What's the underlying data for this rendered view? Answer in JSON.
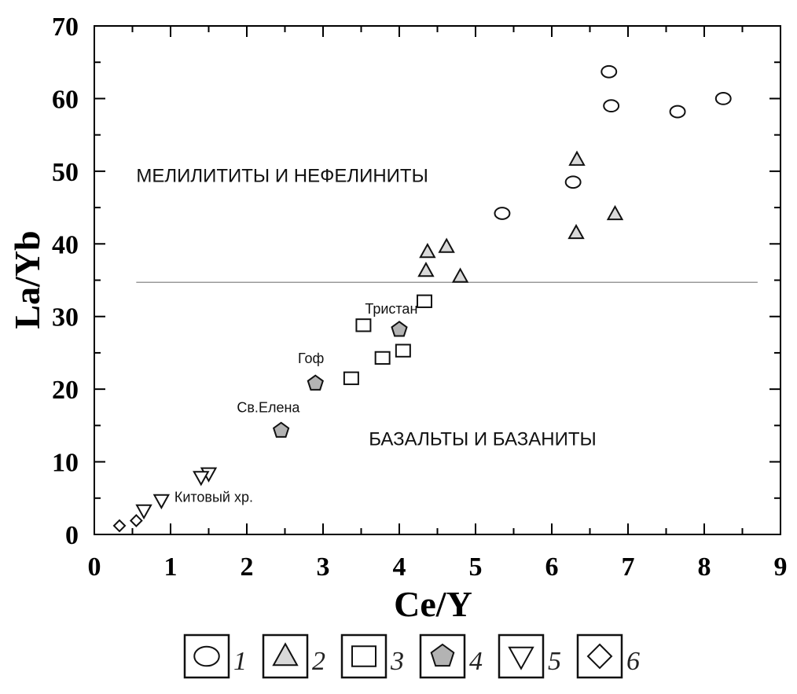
{
  "chart_data": {
    "type": "scatter",
    "xlabel": "Ce/Y",
    "ylabel": "La/Yb",
    "xlim": [
      0,
      9
    ],
    "ylim": [
      0,
      70
    ],
    "x_ticks": [
      0,
      1,
      2,
      3,
      4,
      5,
      6,
      7,
      8,
      9
    ],
    "y_ticks": [
      0,
      10,
      20,
      30,
      40,
      50,
      60,
      70
    ],
    "grid": false,
    "boundary_line": {
      "y": 34.7,
      "x_range": [
        0.55,
        8.7
      ]
    },
    "regions": [
      {
        "label": "МЕЛИЛИТИТЫ И НЕФЕЛИНИТЫ",
        "x": 0.55,
        "y": 48.5
      },
      {
        "label": "БАЗАЛЬТЫ И БАЗАНИТЫ",
        "x": 3.6,
        "y": 12.3
      }
    ],
    "annotations": [
      {
        "text": "Тристан",
        "x": 3.55,
        "y": 30.4
      },
      {
        "text": "Гоф",
        "x": 2.67,
        "y": 23.6
      },
      {
        "text": "Св.Елена",
        "x": 1.87,
        "y": 16.8
      },
      {
        "text": "Китовый хр.",
        "x": 1.05,
        "y": 4.5
      }
    ],
    "legend_position": "bottom-center",
    "series": [
      {
        "name": "1",
        "marker": "circle",
        "color": "#ffffff",
        "points": [
          [
            6.75,
            63.7
          ],
          [
            6.78,
            59.0
          ],
          [
            7.65,
            58.2
          ],
          [
            8.25,
            60.0
          ],
          [
            6.28,
            48.5
          ],
          [
            5.35,
            44.2
          ]
        ]
      },
      {
        "name": "2",
        "marker": "triangle-up",
        "color": "#d9d9d9",
        "points": [
          [
            6.33,
            51.6
          ],
          [
            6.83,
            44.1
          ],
          [
            6.32,
            41.5
          ],
          [
            4.37,
            38.9
          ],
          [
            4.62,
            39.6
          ],
          [
            4.35,
            36.3
          ],
          [
            4.8,
            35.5
          ]
        ]
      },
      {
        "name": "3",
        "marker": "square",
        "color": "#ffffff",
        "points": [
          [
            4.33,
            32.1
          ],
          [
            3.53,
            28.8
          ],
          [
            3.78,
            24.3
          ],
          [
            4.05,
            25.3
          ],
          [
            3.37,
            21.5
          ]
        ]
      },
      {
        "name": "4",
        "marker": "pentagon",
        "color": "#b3b3b3",
        "points": [
          [
            4.0,
            28.2
          ],
          [
            2.9,
            20.8
          ],
          [
            2.45,
            14.3
          ]
        ]
      },
      {
        "name": "5",
        "marker": "triangle-down",
        "color": "#ffffff",
        "points": [
          [
            1.5,
            8.4
          ],
          [
            1.4,
            7.9
          ],
          [
            0.88,
            4.7
          ],
          [
            0.65,
            3.3
          ]
        ]
      },
      {
        "name": "6",
        "marker": "diamond",
        "color": "#ffffff",
        "points": [
          [
            0.55,
            1.9
          ],
          [
            0.33,
            1.2
          ]
        ]
      }
    ]
  }
}
